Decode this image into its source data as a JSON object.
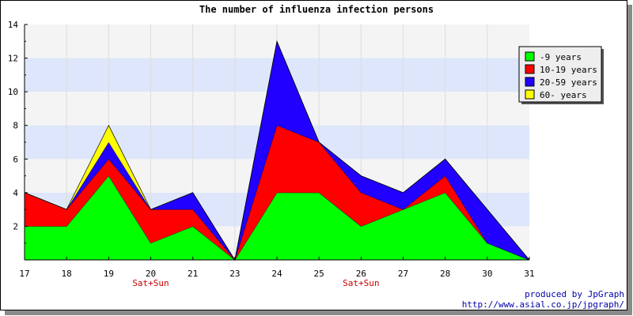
{
  "chart_data": {
    "type": "area",
    "stacked": true,
    "title": "The number of influenza infection persons",
    "categories": [
      "17",
      "18",
      "19",
      "20",
      "21",
      "23",
      "24",
      "25",
      "26",
      "27",
      "28",
      "30",
      "31"
    ],
    "weekend_labels": [
      {
        "category": "20",
        "label": "Sat+Sun"
      },
      {
        "category": "26",
        "label": "Sat+Sun"
      }
    ],
    "ylim": [
      0,
      14
    ],
    "yticks": [
      2,
      4,
      6,
      8,
      10,
      12,
      14
    ],
    "grid": true,
    "legend_position": "top-right",
    "series": [
      {
        "name": "-9 years",
        "color": "#00ff00",
        "values": [
          2,
          2,
          5,
          1,
          2,
          0,
          4,
          4,
          2,
          3,
          4,
          1,
          0
        ]
      },
      {
        "name": "10-19 years",
        "color": "#ff0000",
        "values": [
          2,
          1,
          1,
          2,
          1,
          0,
          4,
          3,
          2,
          0,
          1,
          0,
          0
        ]
      },
      {
        "name": "20-59 years",
        "color": "#2200ff",
        "values": [
          0,
          0,
          1,
          0,
          1,
          0,
          5,
          0,
          1,
          1,
          1,
          2,
          0
        ]
      },
      {
        "name": "60- years",
        "color": "#ffff00",
        "values": [
          0,
          0,
          1,
          0,
          0,
          0,
          0,
          0,
          0,
          0,
          0,
          0,
          0
        ]
      }
    ]
  },
  "footer": {
    "line1": "produced by JpGraph",
    "line2": "http://www.asial.co.jp/jpgraph/"
  }
}
